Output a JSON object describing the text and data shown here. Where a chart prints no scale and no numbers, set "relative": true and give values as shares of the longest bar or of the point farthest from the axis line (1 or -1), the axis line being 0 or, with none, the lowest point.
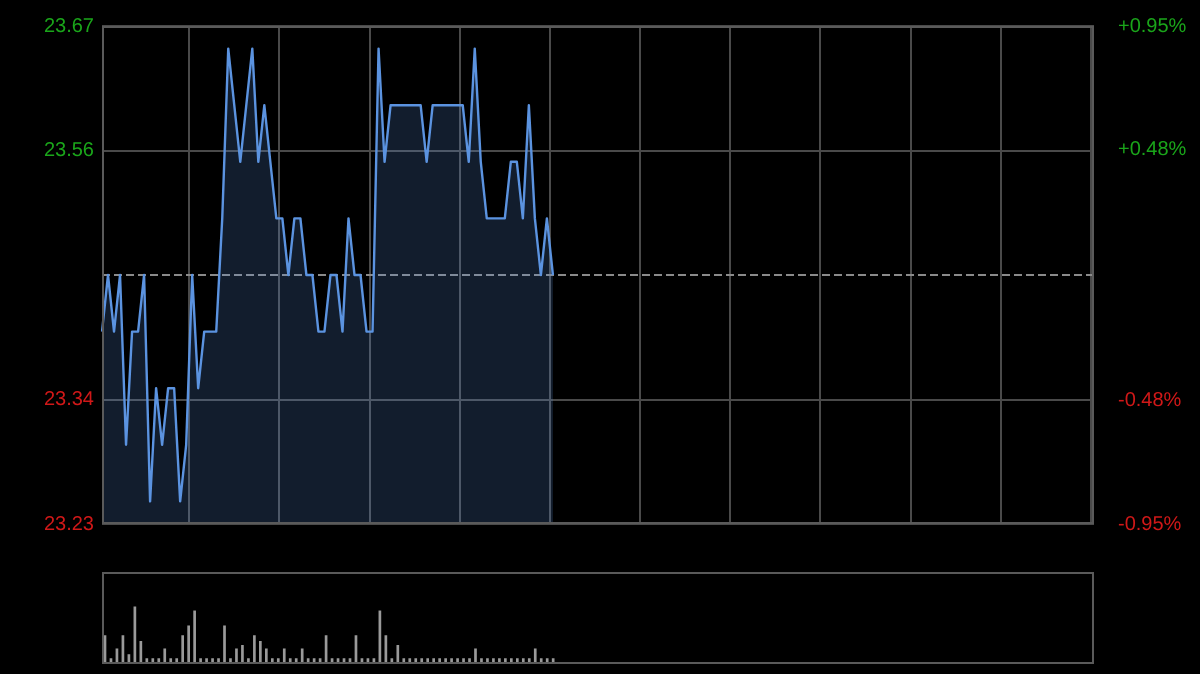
{
  "chart_data": [
    {
      "type": "area",
      "categories": [
        null,
        null,
        null,
        null,
        null,
        null,
        null,
        null,
        null,
        null,
        null,
        null,
        null,
        null,
        null,
        null,
        null,
        null,
        null,
        null,
        null,
        null,
        null,
        null,
        null,
        null,
        null,
        null,
        null,
        null,
        null,
        null,
        null,
        null,
        null,
        null,
        null,
        null,
        null,
        null,
        null,
        null,
        null,
        null,
        null,
        null,
        null,
        null,
        null,
        null,
        null,
        null,
        null,
        null,
        null,
        null,
        null,
        null,
        null,
        null,
        null,
        null,
        null,
        null,
        null,
        null,
        null,
        null,
        null,
        null,
        null,
        null,
        null,
        null,
        null,
        null,
        null,
        null,
        null,
        null,
        null,
        null,
        null,
        null,
        null,
        null,
        null,
        null,
        null,
        null,
        null,
        null,
        null,
        null,
        null,
        null,
        null,
        null,
        null,
        null,
        null,
        null,
        null,
        null,
        null,
        null,
        null,
        null,
        null,
        null,
        null,
        null,
        null,
        null,
        null,
        null,
        null,
        null,
        null,
        null,
        null,
        null,
        null,
        null,
        null,
        null,
        null,
        null,
        null,
        null,
        null,
        null,
        null,
        null,
        null,
        null,
        null,
        null,
        null,
        null,
        null,
        null,
        null,
        null,
        null,
        null,
        null,
        null,
        null,
        null,
        null,
        null,
        null,
        null,
        null,
        null,
        null,
        null,
        null,
        null,
        null,
        null,
        null,
        null,
        null,
        null
      ],
      "series": [
        {
          "color": "#5b93e0",
          "values": [
            23.4,
            23.45,
            23.4,
            23.45,
            23.3,
            23.4,
            23.4,
            23.45,
            23.25,
            23.35,
            23.3,
            23.35,
            23.35,
            23.25,
            23.3,
            23.45,
            23.35,
            23.4,
            23.4,
            23.4,
            23.5,
            23.65,
            23.6,
            23.55,
            23.6,
            23.65,
            23.55,
            23.6,
            23.55,
            23.5,
            23.5,
            23.45,
            23.5,
            23.5,
            23.45,
            23.45,
            23.4,
            23.4,
            23.45,
            23.45,
            23.4,
            23.5,
            23.45,
            23.45,
            23.4,
            23.4,
            23.65,
            23.55,
            23.6,
            23.6,
            23.6,
            23.6,
            23.6,
            23.6,
            23.55,
            23.6,
            23.6,
            23.6,
            23.6,
            23.6,
            23.6,
            23.55,
            23.65,
            23.55,
            23.5,
            23.5,
            23.5,
            23.5,
            23.55,
            23.55,
            23.5,
            23.6,
            23.5,
            23.45,
            23.5,
            23.45,
            null,
            null,
            null,
            null,
            null,
            null,
            null,
            null,
            null,
            null,
            null,
            null,
            null,
            null,
            null,
            null,
            null,
            null,
            null,
            null,
            null,
            null,
            null,
            null,
            null,
            null,
            null,
            null,
            null,
            null,
            null,
            null,
            null,
            null,
            null,
            null,
            null,
            null,
            null,
            null,
            null,
            null,
            null,
            null,
            null,
            null,
            null,
            null,
            null,
            null,
            null,
            null,
            null,
            null,
            null,
            null,
            null,
            null,
            null,
            null,
            null,
            null,
            null,
            null,
            null,
            null,
            null,
            null,
            null,
            null,
            null,
            null,
            null,
            null,
            null,
            null,
            null,
            null,
            null,
            null,
            null,
            null,
            null,
            null,
            null,
            null,
            null,
            null,
            null,
            null
          ]
        }
      ],
      "ylim": [
        23.23,
        23.67
      ],
      "yticks": [
        23.23,
        23.34,
        23.56,
        23.67
      ],
      "y2lim": [
        -0.95,
        0.95
      ],
      "y2ticks": [
        {
          "value": -0.95,
          "label": "-0.95%"
        },
        {
          "value": -0.48,
          "label": "-0.48%"
        },
        {
          "value": 0.48,
          "label": "+0.48%"
        },
        {
          "value": 0.95,
          "label": "+0.95%"
        }
      ],
      "ref_lines": [
        {
          "axis": "y",
          "value": 23.45,
          "line_style": "dashed"
        }
      ],
      "grid": true,
      "tick_labels": "y"
    },
    {
      "type": "bar",
      "relative": true,
      "categories": [
        null,
        null,
        null,
        null,
        null,
        null,
        null,
        null,
        null,
        null,
        null,
        null,
        null,
        null,
        null,
        null,
        null,
        null,
        null,
        null,
        null,
        null,
        null,
        null,
        null,
        null,
        null,
        null,
        null,
        null,
        null,
        null,
        null,
        null,
        null,
        null,
        null,
        null,
        null,
        null,
        null,
        null,
        null,
        null,
        null,
        null,
        null,
        null,
        null,
        null,
        null,
        null,
        null,
        null,
        null,
        null,
        null,
        null,
        null,
        null,
        null,
        null,
        null,
        null,
        null,
        null,
        null,
        null,
        null,
        null,
        null,
        null,
        null,
        null,
        null,
        null,
        null,
        null,
        null,
        null,
        null,
        null,
        null,
        null,
        null,
        null,
        null,
        null,
        null,
        null,
        null,
        null,
        null,
        null,
        null,
        null,
        null,
        null,
        null,
        null,
        null,
        null,
        null,
        null,
        null,
        null,
        null,
        null,
        null,
        null,
        null,
        null,
        null,
        null,
        null,
        null,
        null,
        null,
        null,
        null,
        null,
        null,
        null,
        null,
        null,
        null,
        null,
        null,
        null,
        null,
        null,
        null,
        null,
        null,
        null,
        null,
        null,
        null,
        null,
        null,
        null,
        null,
        null,
        null,
        null,
        null,
        null,
        null,
        null,
        null,
        null,
        null,
        null,
        null,
        null,
        null,
        null,
        null,
        null,
        null,
        null,
        null,
        null,
        null,
        null,
        null
      ],
      "series": [
        {
          "color": "#9a9a9a",
          "values": [
            0.5,
            0.1,
            0.27,
            0.5,
            0.17,
            1,
            0.4,
            0.1,
            0.1,
            0.1,
            0.27,
            0.1,
            0.1,
            0.5,
            0.67,
            0.93,
            0.1,
            0.1,
            0.1,
            0.1,
            0.67,
            0.1,
            0.27,
            0.33,
            0.1,
            0.5,
            0.4,
            0.27,
            0.1,
            0.1,
            0.27,
            0.1,
            0.1,
            0.27,
            0.1,
            0.1,
            0.1,
            0.5,
            0.1,
            0.1,
            0.1,
            0.1,
            0.5,
            0.1,
            0.1,
            0.1,
            0.93,
            0.5,
            0.1,
            0.33,
            0.1,
            0.1,
            0.1,
            0.1,
            0.1,
            0.1,
            0.1,
            0.1,
            0.1,
            0.1,
            0.1,
            0.1,
            0.27,
            0.1,
            0.1,
            0.1,
            0.1,
            0.1,
            0.1,
            0.1,
            0.1,
            0.1,
            0.27,
            0.1,
            0.1,
            0.1,
            null,
            null,
            null,
            null,
            null,
            null,
            null,
            null,
            null,
            null,
            null,
            null,
            null,
            null,
            null,
            null,
            null,
            null,
            null,
            null,
            null,
            null,
            null,
            null,
            null,
            null,
            null,
            null,
            null,
            null,
            null,
            null,
            null,
            null,
            null,
            null,
            null,
            null,
            null,
            null,
            null,
            null,
            null,
            null,
            null,
            null,
            null,
            null,
            null,
            null,
            null,
            null,
            null,
            null,
            null,
            null,
            null,
            null,
            null,
            null,
            null,
            null,
            null,
            null,
            null,
            null,
            null,
            null,
            null,
            null,
            null,
            null,
            null,
            null,
            null,
            null,
            null,
            null,
            null,
            null,
            null,
            null,
            null,
            null,
            null,
            null,
            null,
            null,
            null,
            null
          ]
        }
      ],
      "grid": false,
      "tick_labels": false
    }
  ]
}
